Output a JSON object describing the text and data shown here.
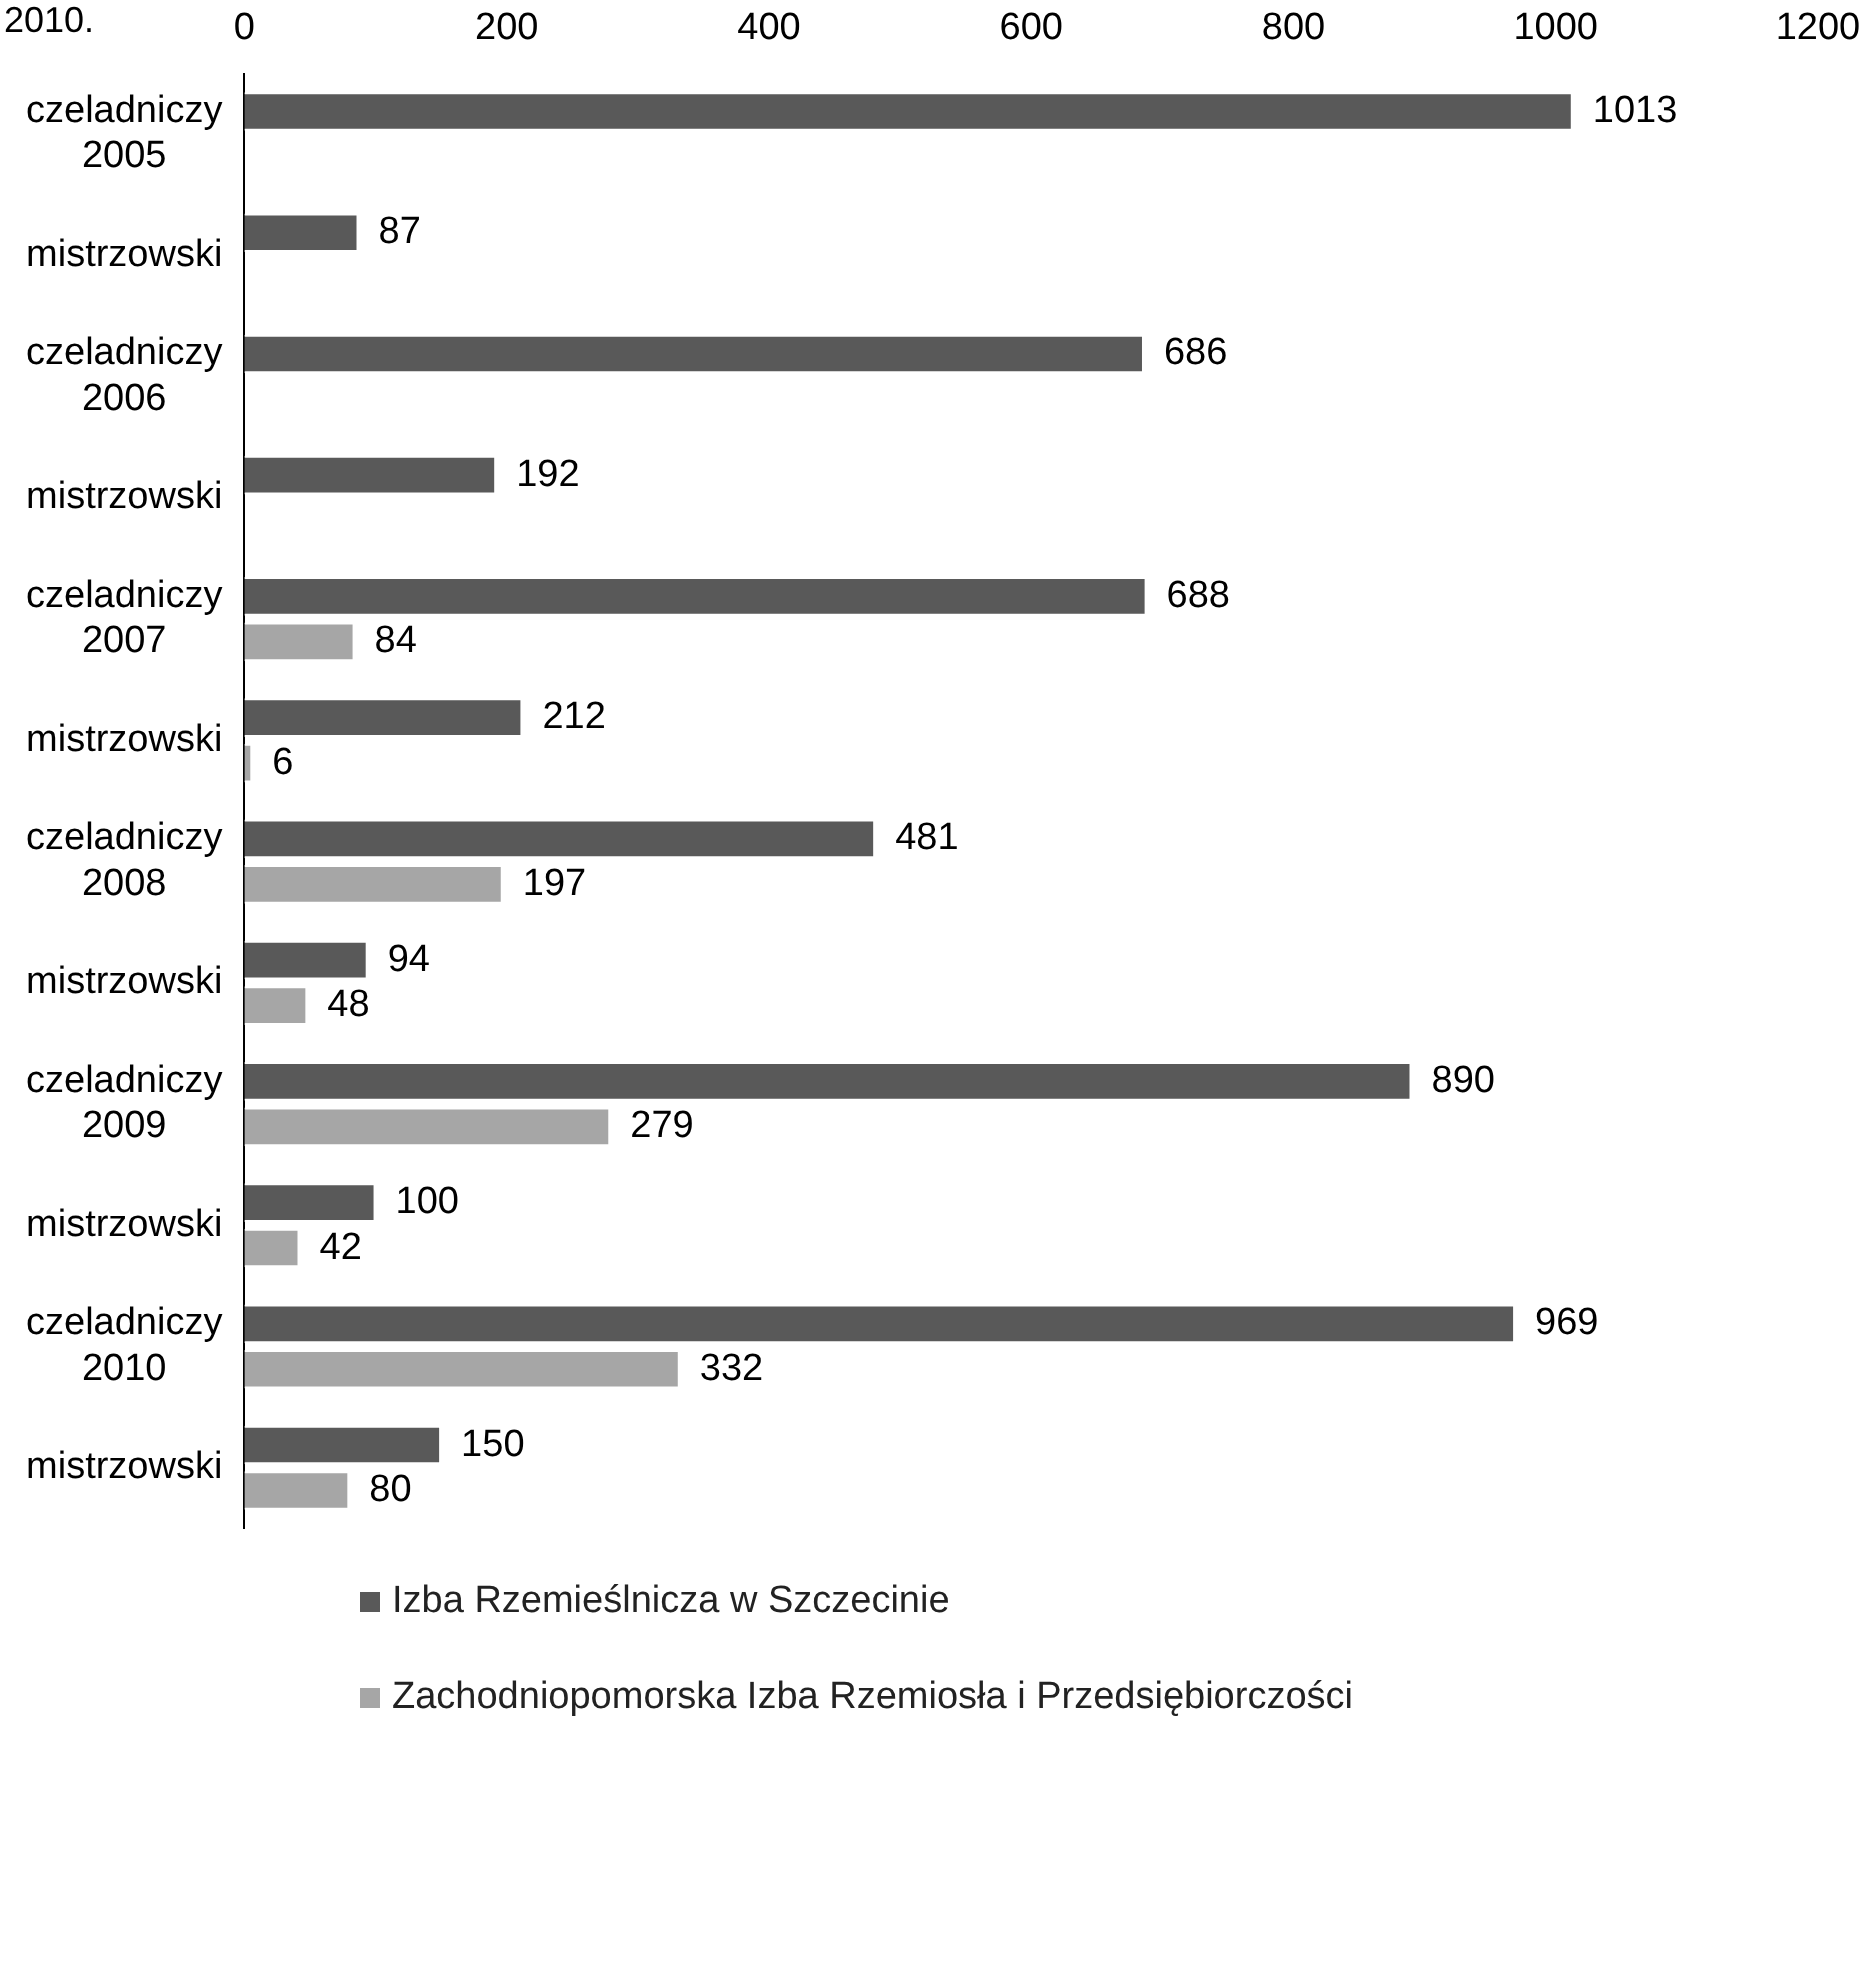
{
  "chart_data": {
    "type": "bar",
    "orientation": "horizontal",
    "annotations": [
      "2010."
    ],
    "categories": [
      "czeladniczy 2005",
      "mistrzowski",
      "czeladniczy 2006",
      "mistrzowski",
      "czeladniczy 2007",
      "mistrzowski",
      "czeladniczy 2008",
      "mistrzowski",
      "czeladniczy 2009",
      "mistrzowski",
      "czeladniczy 2010",
      "mistrzowski"
    ],
    "series": [
      {
        "name": "Izba Rzemieślnicza w Szczecinie",
        "color": "#595959",
        "values": [
          1013,
          87,
          686,
          192,
          688,
          212,
          481,
          94,
          890,
          100,
          969,
          150
        ]
      },
      {
        "name": "Zachodniopomorska Izba Rzemiosła i Przedsiębiorczości",
        "color": "#a6a6a6",
        "values": [
          null,
          null,
          null,
          null,
          84,
          6,
          197,
          48,
          279,
          42,
          332,
          80
        ]
      }
    ],
    "xlim": [
      0,
      1200
    ],
    "xticks": [
      0,
      200,
      400,
      600,
      800,
      1000,
      1200
    ],
    "data_labels": true,
    "grid": false,
    "legend": "bottom"
  }
}
